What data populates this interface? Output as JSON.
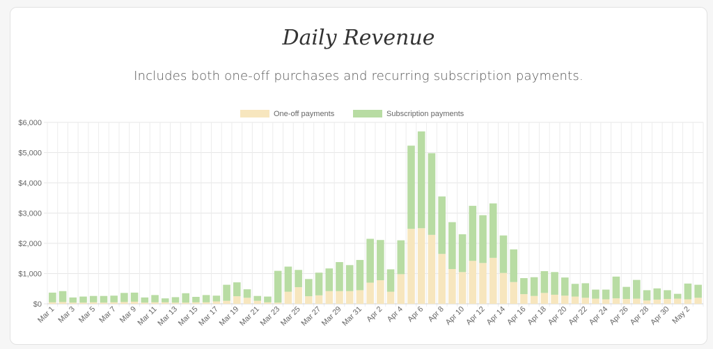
{
  "chart_data": {
    "type": "bar",
    "stacked": true,
    "title": "Daily Revenue",
    "subtitle": "Includes both one-off purchases and recurring subscription payments.",
    "ylim": [
      0,
      6000
    ],
    "y_ticks": [
      "$0",
      "$1,000",
      "$2,000",
      "$3,000",
      "$4,000",
      "$5,000",
      "$6,000"
    ],
    "grid": true,
    "legend_position": "top",
    "colors": {
      "oneoff": "#f7e6be",
      "subscription": "#b8dca3"
    },
    "x_tick_labels": [
      "Mar 1",
      "Mar 3",
      "Mar 5",
      "Mar 7",
      "Mar 9",
      "Mar 11",
      "Mar 13",
      "Mar 15",
      "Mar 17",
      "Mar 19",
      "Mar 21",
      "Mar 23",
      "Mar 25",
      "Mar 27",
      "Mar 29",
      "Mar 31",
      "Apr 2",
      "Apr 4",
      "Apr 6",
      "Apr 8",
      "Apr 10",
      "Apr 12",
      "Apr 14",
      "Apr 16",
      "Apr 18",
      "Apr 20",
      "Apr 22",
      "Apr 24",
      "Apr 26",
      "Apr 28",
      "Apr 30",
      "May 2"
    ],
    "categories": [
      "Mar 1",
      "Mar 2",
      "Mar 3",
      "Mar 4",
      "Mar 5",
      "Mar 6",
      "Mar 7",
      "Mar 8",
      "Mar 9",
      "Mar 10",
      "Mar 11",
      "Mar 12",
      "Mar 13",
      "Mar 14",
      "Mar 15",
      "Mar 16",
      "Mar 17",
      "Mar 18",
      "Mar 19",
      "Mar 20",
      "Mar 21",
      "Mar 22",
      "Mar 23",
      "Mar 24",
      "Mar 25",
      "Mar 26",
      "Mar 27",
      "Mar 28",
      "Mar 29",
      "Mar 30",
      "Mar 31",
      "Apr 1",
      "Apr 2",
      "Apr 3",
      "Apr 4",
      "Apr 5",
      "Apr 6",
      "Apr 7",
      "Apr 8",
      "Apr 9",
      "Apr 10",
      "Apr 11",
      "Apr 12",
      "Apr 13",
      "Apr 14",
      "Apr 15",
      "Apr 16",
      "Apr 17",
      "Apr 18",
      "Apr 19",
      "Apr 20",
      "Apr 21",
      "Apr 22",
      "Apr 23",
      "Apr 24",
      "Apr 25",
      "Apr 26",
      "Apr 27",
      "Apr 28",
      "Apr 29",
      "Apr 30",
      "May 1",
      "May 2",
      "May 3"
    ],
    "series": [
      {
        "name": "One-off payments",
        "values": [
          50,
          60,
          40,
          40,
          50,
          40,
          50,
          60,
          70,
          40,
          50,
          50,
          40,
          40,
          50,
          50,
          80,
          100,
          250,
          200,
          100,
          50,
          40,
          400,
          550,
          250,
          280,
          420,
          420,
          420,
          450,
          700,
          780,
          400,
          980,
          2480,
          2500,
          2280,
          1650,
          1150,
          1050,
          1420,
          1350,
          1520,
          1020,
          720,
          320,
          260,
          360,
          300,
          270,
          240,
          200,
          170,
          150,
          180,
          160,
          170,
          110,
          140,
          160,
          170,
          150,
          200
        ]
      },
      {
        "name": "Subscription payments",
        "values": [
          320,
          360,
          170,
          200,
          210,
          220,
          220,
          300,
          300,
          170,
          240,
          130,
          180,
          310,
          180,
          240,
          190,
          530,
          460,
          280,
          160,
          190,
          1050,
          830,
          570,
          570,
          750,
          750,
          960,
          860,
          1000,
          1450,
          1330,
          740,
          1120,
          2750,
          3200,
          2700,
          1900,
          1550,
          1250,
          1820,
          1580,
          1800,
          1240,
          1080,
          530,
          620,
          720,
          750,
          600,
          420,
          480,
          300,
          320,
          720,
          400,
          620,
          340,
          370,
          290,
          160,
          520,
          430
        ]
      }
    ]
  },
  "legend": {
    "oneoff_label": "One-off payments",
    "subscription_label": "Subscription payments"
  }
}
